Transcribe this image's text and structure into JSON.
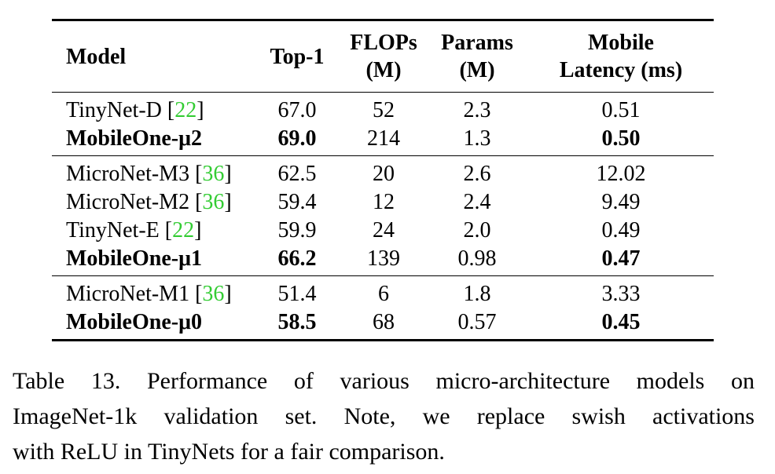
{
  "table": {
    "headers": {
      "model": "Model",
      "top1": "Top-1",
      "flops_line1": "FLOPs",
      "flops_line2": "(M)",
      "params_line1": "Params",
      "params_line2": "(M)",
      "latency_line1": "Mobile",
      "latency_line2": "Latency (ms)"
    },
    "groups": [
      {
        "rows": [
          {
            "model": "TinyNet-D ",
            "cite": "22",
            "top1": "67.0",
            "flops": "52",
            "params": "2.3",
            "latency": "0.51",
            "bold_model": false,
            "bold_top1": false,
            "bold_latency": false
          },
          {
            "model": "MobileOne-μ2",
            "cite": "",
            "top1": "69.0",
            "flops": "214",
            "params": "1.3",
            "latency": "0.50",
            "bold_model": true,
            "bold_top1": true,
            "bold_latency": true
          }
        ]
      },
      {
        "rows": [
          {
            "model": "MicroNet-M3 ",
            "cite": "36",
            "top1": "62.5",
            "flops": "20",
            "params": "2.6",
            "latency": "12.02",
            "bold_model": false,
            "bold_top1": false,
            "bold_latency": false
          },
          {
            "model": "MicroNet-M2 ",
            "cite": "36",
            "top1": "59.4",
            "flops": "12",
            "params": "2.4",
            "latency": "9.49",
            "bold_model": false,
            "bold_top1": false,
            "bold_latency": false
          },
          {
            "model": "TinyNet-E ",
            "cite": "22",
            "top1": "59.9",
            "flops": "24",
            "params": "2.0",
            "latency": "0.49",
            "bold_model": false,
            "bold_top1": false,
            "bold_latency": false
          },
          {
            "model": "MobileOne-μ1",
            "cite": "",
            "top1": "66.2",
            "flops": "139",
            "params": "0.98",
            "latency": "0.47",
            "bold_model": true,
            "bold_top1": true,
            "bold_latency": true
          }
        ]
      },
      {
        "rows": [
          {
            "model": "MicroNet-M1 ",
            "cite": "36",
            "top1": "51.4",
            "flops": "6",
            "params": "1.8",
            "latency": "3.33",
            "bold_model": false,
            "bold_top1": false,
            "bold_latency": false
          },
          {
            "model": "MobileOne-μ0",
            "cite": "",
            "top1": "58.5",
            "flops": "68",
            "params": "0.57",
            "latency": "0.45",
            "bold_model": true,
            "bold_top1": true,
            "bold_latency": true
          }
        ]
      }
    ]
  },
  "caption": {
    "lines": [
      "Table 13.  Performance of various micro-architecture models on",
      "ImageNet-1k validation set.  Note, we replace swish activations",
      "with ReLU in TinyNets for a fair comparison."
    ]
  },
  "colors": {
    "citation": "#33cc33",
    "text": "#000000"
  }
}
